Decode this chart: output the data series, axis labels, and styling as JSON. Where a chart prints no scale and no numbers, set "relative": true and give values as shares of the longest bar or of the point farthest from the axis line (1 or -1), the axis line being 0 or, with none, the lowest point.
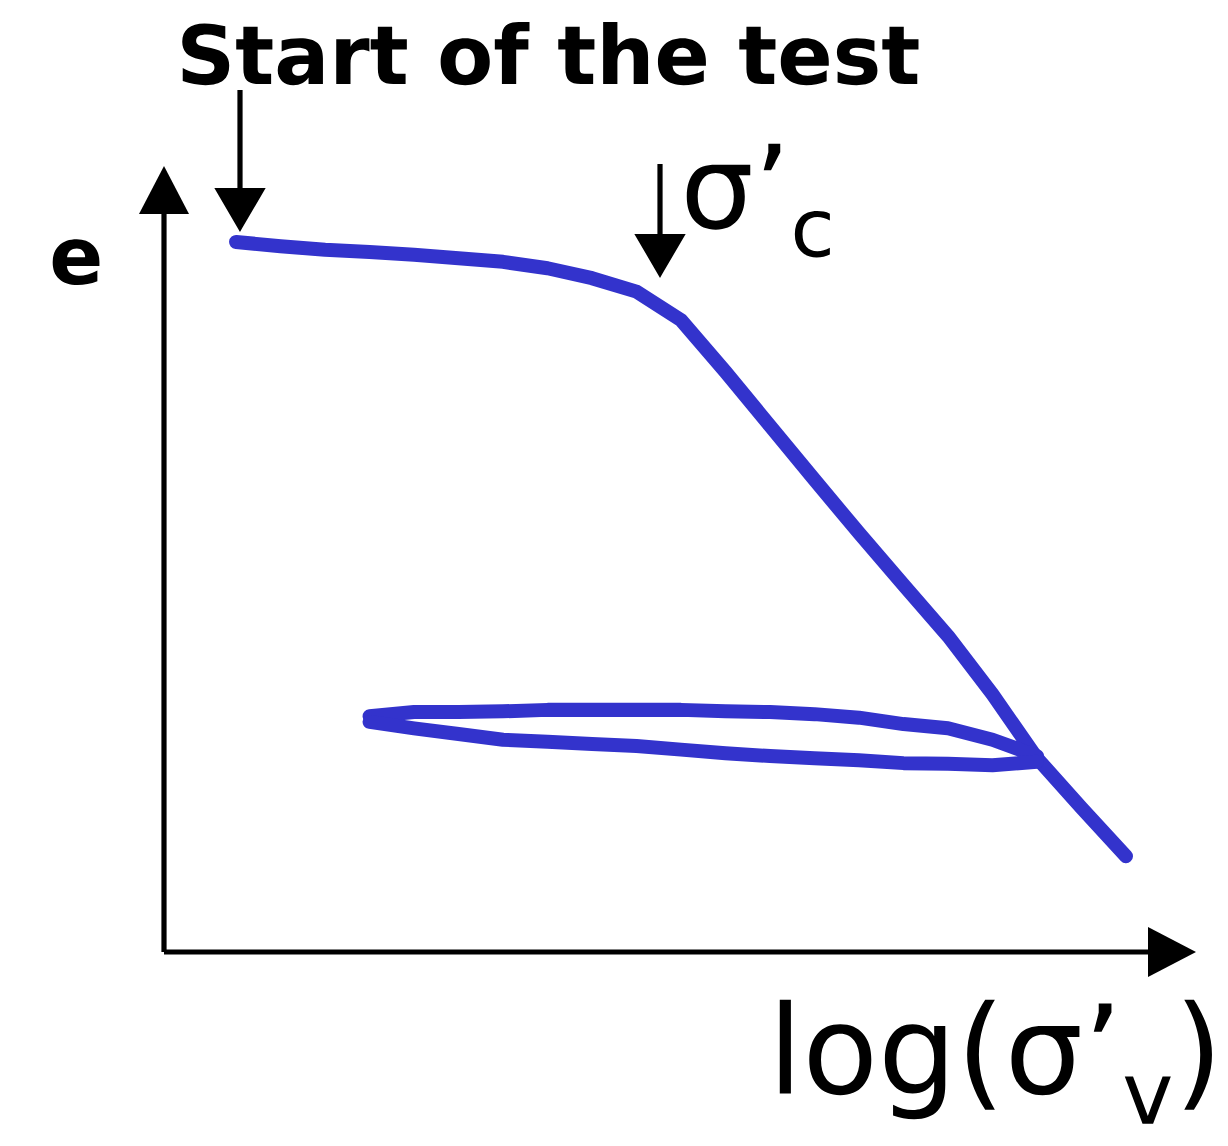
{
  "chart_data": {
    "type": "line",
    "xlabel": "log(σ’$_{v}$)",
    "ylabel": "e",
    "relative": true,
    "annotations": [
      "Start of the test",
      "σ’$_{c}$"
    ],
    "categories": [
      null,
      null,
      null,
      null,
      null,
      null,
      null,
      null,
      null,
      null,
      null,
      null,
      null,
      null,
      null,
      null,
      null,
      null,
      null,
      null,
      null
    ],
    "series": [
      {
        "color": "#3333cc",
        "values": [
          1.0,
          0.994,
          0.989,
          0.986,
          0.982,
          0.977,
          0.972,
          0.963,
          0.949,
          0.93,
          0.89,
          0.817,
          0.741,
          0.665,
          0.59,
          0.517,
          0.445,
          0.363,
          0.273,
          0.203,
          0.135
        ]
      },
      {
        "color": "#3333cc",
        "values": [
          null,
          null,
          null,
          0.332,
          0.338,
          0.338,
          0.339,
          0.341,
          0.341,
          0.341,
          0.341,
          0.339,
          0.338,
          0.335,
          0.33,
          0.321,
          0.315,
          0.299,
          0.276,
          null,
          null
        ]
      },
      {
        "color": "#3333cc",
        "values": [
          null,
          null,
          null,
          0.324,
          0.315,
          0.307,
          0.299,
          0.296,
          0.293,
          0.29,
          0.285,
          0.28,
          0.276,
          0.273,
          0.27,
          0.266,
          0.265,
          0.263,
          0.268,
          null,
          null
        ]
      }
    ]
  }
}
